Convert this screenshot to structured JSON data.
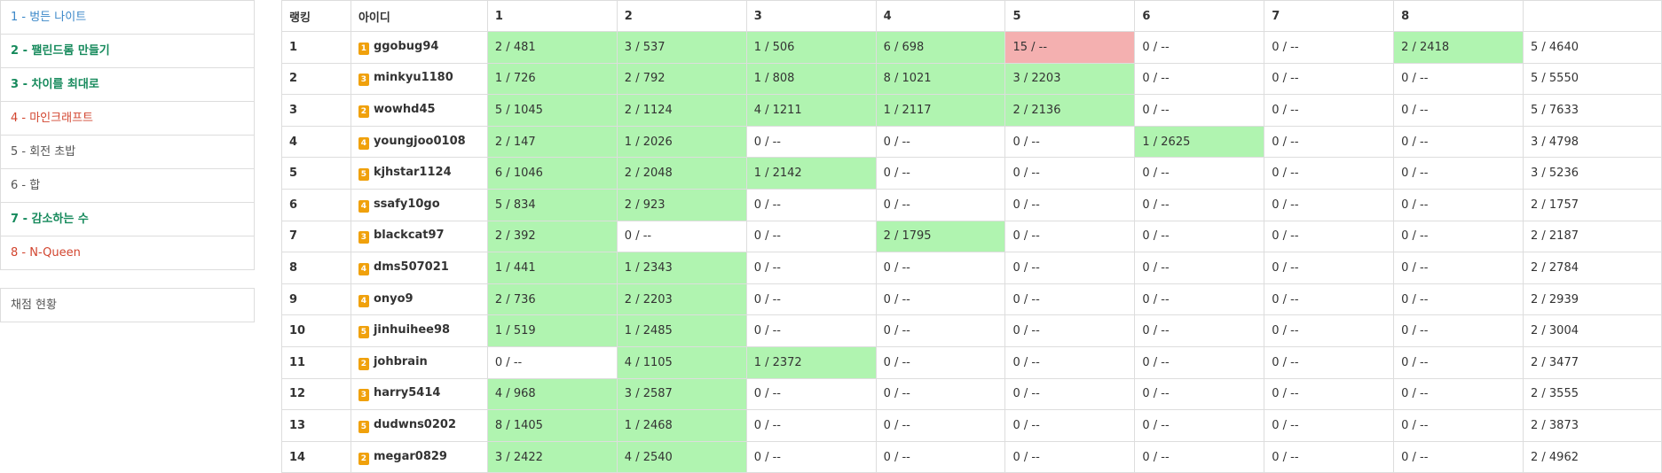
{
  "sidebar": {
    "problems": [
      {
        "label": "1 - 벙든 나이트",
        "status": "blue"
      },
      {
        "label": "2 - 팰린드롬 만들기",
        "status": "green"
      },
      {
        "label": "3 - 차이를 최대로",
        "status": "green"
      },
      {
        "label": "4 - 마인크래프트",
        "status": "red"
      },
      {
        "label": "5 - 회전 초밥",
        "status": "gray"
      },
      {
        "label": "6 - 합",
        "status": "gray"
      },
      {
        "label": "7 - 감소하는 수",
        "status": "green"
      },
      {
        "label": "8 - N-Queen",
        "status": "red"
      }
    ],
    "status_link": "채점 현황"
  },
  "table": {
    "headers": [
      "랭킹",
      "아이디",
      "1",
      "2",
      "3",
      "4",
      "5",
      "6",
      "7",
      "8",
      ""
    ],
    "colors": {
      "accepted": "#b0f4b0",
      "wrong": "#f4b0b0",
      "tier_badge": "#f0a10c"
    },
    "rows": [
      {
        "rank": "1",
        "tier": "1",
        "user": "ggobug94",
        "cells": [
          "2 / 481",
          "3 / 537",
          "1 / 506",
          "6 / 698",
          "15 / --",
          "0 / --",
          "0 / --",
          "2 / 2418"
        ],
        "states": [
          "ac",
          "ac",
          "ac",
          "ac",
          "wa",
          "",
          "",
          "ac"
        ],
        "total": "5 / 4640"
      },
      {
        "rank": "2",
        "tier": "3",
        "user": "minkyu1180",
        "cells": [
          "1 / 726",
          "2 / 792",
          "1 / 808",
          "8 / 1021",
          "3 / 2203",
          "0 / --",
          "0 / --",
          "0 / --"
        ],
        "states": [
          "ac",
          "ac",
          "ac",
          "ac",
          "ac",
          "",
          "",
          ""
        ],
        "total": "5 / 5550"
      },
      {
        "rank": "3",
        "tier": "2",
        "user": "wowhd45",
        "cells": [
          "5 / 1045",
          "2 / 1124",
          "4 / 1211",
          "1 / 2117",
          "2 / 2136",
          "0 / --",
          "0 / --",
          "0 / --"
        ],
        "states": [
          "ac",
          "ac",
          "ac",
          "ac",
          "ac",
          "",
          "",
          ""
        ],
        "total": "5 / 7633"
      },
      {
        "rank": "4",
        "tier": "4",
        "user": "youngjoo0108",
        "cells": [
          "2 / 147",
          "1 / 2026",
          "0 / --",
          "0 / --",
          "0 / --",
          "1 / 2625",
          "0 / --",
          "0 / --"
        ],
        "states": [
          "ac",
          "ac",
          "",
          "",
          "",
          "ac",
          "",
          ""
        ],
        "total": "3 / 4798"
      },
      {
        "rank": "5",
        "tier": "5",
        "user": "kjhstar1124",
        "cells": [
          "6 / 1046",
          "2 / 2048",
          "1 / 2142",
          "0 / --",
          "0 / --",
          "0 / --",
          "0 / --",
          "0 / --"
        ],
        "states": [
          "ac",
          "ac",
          "ac",
          "",
          "",
          "",
          "",
          ""
        ],
        "total": "3 / 5236"
      },
      {
        "rank": "6",
        "tier": "4",
        "user": "ssafy10go",
        "cells": [
          "5 / 834",
          "2 / 923",
          "0 / --",
          "0 / --",
          "0 / --",
          "0 / --",
          "0 / --",
          "0 / --"
        ],
        "states": [
          "ac",
          "ac",
          "",
          "",
          "",
          "",
          "",
          ""
        ],
        "total": "2 / 1757"
      },
      {
        "rank": "7",
        "tier": "3",
        "user": "blackcat97",
        "cells": [
          "2 / 392",
          "0 / --",
          "0 / --",
          "2 / 1795",
          "0 / --",
          "0 / --",
          "0 / --",
          "0 / --"
        ],
        "states": [
          "ac",
          "",
          "",
          "ac",
          "",
          "",
          "",
          ""
        ],
        "total": "2 / 2187"
      },
      {
        "rank": "8",
        "tier": "4",
        "user": "dms507021",
        "cells": [
          "1 / 441",
          "1 / 2343",
          "0 / --",
          "0 / --",
          "0 / --",
          "0 / --",
          "0 / --",
          "0 / --"
        ],
        "states": [
          "ac",
          "ac",
          "",
          "",
          "",
          "",
          "",
          ""
        ],
        "total": "2 / 2784"
      },
      {
        "rank": "9",
        "tier": "4",
        "user": "onyo9",
        "cells": [
          "2 / 736",
          "2 / 2203",
          "0 / --",
          "0 / --",
          "0 / --",
          "0 / --",
          "0 / --",
          "0 / --"
        ],
        "states": [
          "ac",
          "ac",
          "",
          "",
          "",
          "",
          "",
          ""
        ],
        "total": "2 / 2939"
      },
      {
        "rank": "10",
        "tier": "5",
        "user": "jinhuihee98",
        "cells": [
          "1 / 519",
          "1 / 2485",
          "0 / --",
          "0 / --",
          "0 / --",
          "0 / --",
          "0 / --",
          "0 / --"
        ],
        "states": [
          "ac",
          "ac",
          "",
          "",
          "",
          "",
          "",
          ""
        ],
        "total": "2 / 3004"
      },
      {
        "rank": "11",
        "tier": "2",
        "user": "johbrain",
        "cells": [
          "0 / --",
          "4 / 1105",
          "1 / 2372",
          "0 / --",
          "0 / --",
          "0 / --",
          "0 / --",
          "0 / --"
        ],
        "states": [
          "",
          "ac",
          "ac",
          "",
          "",
          "",
          "",
          ""
        ],
        "total": "2 / 3477"
      },
      {
        "rank": "12",
        "tier": "3",
        "user": "harry5414",
        "cells": [
          "4 / 968",
          "3 / 2587",
          "0 / --",
          "0 / --",
          "0 / --",
          "0 / --",
          "0 / --",
          "0 / --"
        ],
        "states": [
          "ac",
          "ac",
          "",
          "",
          "",
          "",
          "",
          ""
        ],
        "total": "2 / 3555"
      },
      {
        "rank": "13",
        "tier": "5",
        "user": "dudwns0202",
        "cells": [
          "8 / 1405",
          "1 / 2468",
          "0 / --",
          "0 / --",
          "0 / --",
          "0 / --",
          "0 / --",
          "0 / --"
        ],
        "states": [
          "ac",
          "ac",
          "",
          "",
          "",
          "",
          "",
          ""
        ],
        "total": "2 / 3873"
      },
      {
        "rank": "14",
        "tier": "2",
        "user": "megar0829",
        "cells": [
          "3 / 2422",
          "4 / 2540",
          "0 / --",
          "0 / --",
          "0 / --",
          "0 / --",
          "0 / --",
          "0 / --"
        ],
        "states": [
          "ac",
          "ac",
          "",
          "",
          "",
          "",
          "",
          ""
        ],
        "total": "2 / 4962"
      }
    ]
  }
}
